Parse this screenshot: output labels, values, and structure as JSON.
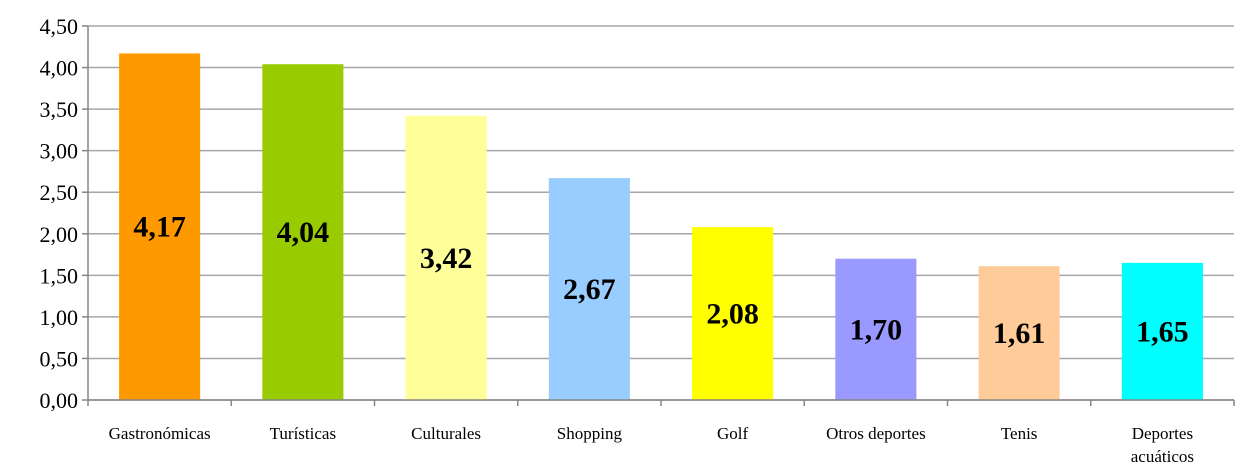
{
  "chart_data": {
    "type": "bar",
    "categories": [
      [
        "Gastronómicas"
      ],
      [
        "Turísticas"
      ],
      [
        "Culturales"
      ],
      [
        "Shopping"
      ],
      [
        "Golf"
      ],
      [
        "Otros deportes"
      ],
      [
        "Tenis"
      ],
      [
        "Deportes",
        "acuáticos"
      ]
    ],
    "values": [
      4.17,
      4.04,
      3.42,
      2.67,
      2.08,
      1.7,
      1.61,
      1.65
    ],
    "data_labels": [
      "4,17",
      "4,04",
      "3,42",
      "2,67",
      "2,08",
      "1,70",
      "1,61",
      "1,65"
    ],
    "colors": [
      "#FF9900",
      "#99CC00",
      "#FFFF99",
      "#99CCFF",
      "#FFFF00",
      "#9999FF",
      "#FFCC99",
      "#00FFFF"
    ],
    "ylim": [
      0,
      4.5
    ],
    "yticks": [
      0,
      0.5,
      1,
      1.5,
      2,
      2.5,
      3,
      3.5,
      4,
      4.5
    ],
    "ytick_labels": [
      "0,00",
      "0,50",
      "1,00",
      "1,50",
      "2,00",
      "2,50",
      "3,00",
      "3,50",
      "4,00",
      "4,50"
    ],
    "grid": true,
    "title": "",
    "xlabel": "",
    "ylabel": ""
  }
}
